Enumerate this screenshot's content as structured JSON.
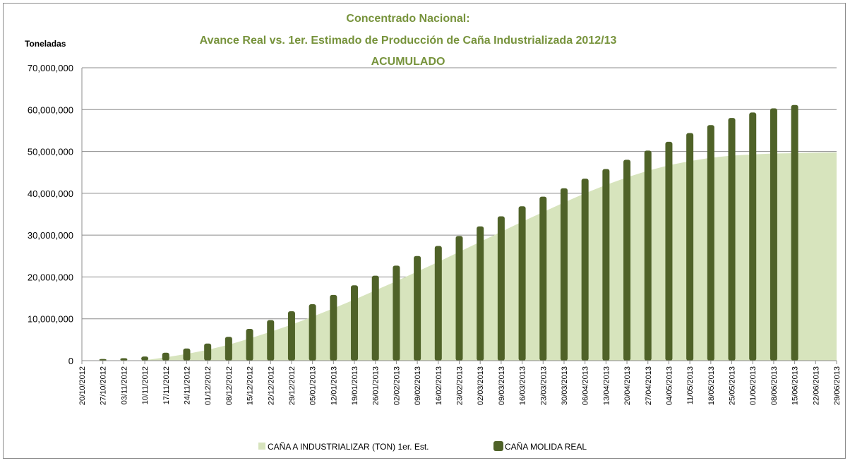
{
  "chart_data": {
    "type": "bar",
    "title_lines": [
      "Concentrado Nacional:",
      "Avance Real vs. 1er. Estimado de Producción de Caña Industrializada 2012/13",
      "ACUMULADO"
    ],
    "ylabel": "Toneladas",
    "ylim": [
      0,
      70000000
    ],
    "y_ticks": [
      "0",
      "10,000,000",
      "20,000,000",
      "30,000,000",
      "40,000,000",
      "50,000,000",
      "60,000,000",
      "70,000,000"
    ],
    "x_ticks": [
      "20/10/2012",
      "27/10/2012",
      "03/11/2012",
      "10/11/2012",
      "17/11/2012",
      "24/11/2012",
      "01/12/2012",
      "08/12/2012",
      "15/12/2012",
      "22/12/2012",
      "29/12/2012",
      "05/01/2013",
      "12/01/2013",
      "19/01/2013",
      "26/01/2013",
      "02/02/2013",
      "09/02/2013",
      "16/02/2013",
      "23/02/2013",
      "02/03/2013",
      "09/03/2013",
      "16/03/2013",
      "23/03/2013",
      "30/03/2013",
      "06/04/2013",
      "13/04/2013",
      "20/04/2013",
      "27/04/2013",
      "04/05/2013",
      "11/05/2013",
      "18/05/2013",
      "25/05/2013",
      "01/06/2013",
      "08/06/2013",
      "15/06/2013",
      "22/06/2013",
      "29/06/2013"
    ],
    "grid": true,
    "legend_position": "bottom",
    "series": [
      {
        "name": "CAÑA A INDUSTRIALIZAR (TON) 1er. Est.",
        "kind": "area",
        "color": "#d7e4bd",
        "x": [
          "20/10/2012",
          "27/10/2012",
          "03/11/2012",
          "10/11/2012",
          "17/11/2012",
          "24/11/2012",
          "01/12/2012",
          "08/12/2012",
          "15/12/2012",
          "22/12/2012",
          "29/12/2012",
          "05/01/2013",
          "12/01/2013",
          "19/01/2013",
          "26/01/2013",
          "02/02/2013",
          "09/02/2013",
          "16/02/2013",
          "23/02/2013",
          "02/03/2013",
          "09/03/2013",
          "16/03/2013",
          "23/03/2013",
          "30/03/2013",
          "06/04/2013",
          "13/04/2013",
          "20/04/2013",
          "27/04/2013",
          "04/05/2013",
          "11/05/2013",
          "18/05/2013",
          "25/05/2013",
          "01/06/2013",
          "08/06/2013",
          "15/06/2013",
          "22/06/2013",
          "29/06/2013"
        ],
        "values": [
          0,
          0,
          0,
          100000,
          800000,
          1600000,
          2600000,
          3800000,
          5300000,
          6900000,
          8600000,
          10500000,
          12500000,
          14600000,
          16800000,
          19000000,
          21300000,
          23600000,
          26000000,
          28400000,
          30800000,
          33200000,
          35500000,
          37800000,
          40000000,
          42000000,
          43800000,
          45400000,
          46700000,
          47700000,
          48500000,
          49000000,
          49300000,
          49500000,
          49600000,
          49700000,
          49750000
        ]
      },
      {
        "name": "CAÑA MOLIDA REAL",
        "kind": "bar",
        "color": "#4f6228",
        "x": [
          "27/10/2012",
          "03/11/2012",
          "10/11/2012",
          "17/11/2012",
          "24/11/2012",
          "01/12/2012",
          "08/12/2012",
          "15/12/2012",
          "22/12/2012",
          "29/12/2012",
          "05/01/2013",
          "12/01/2013",
          "19/01/2013",
          "26/01/2013",
          "02/02/2013",
          "09/02/2013",
          "16/02/2013",
          "23/02/2013",
          "02/03/2013",
          "09/03/2013",
          "16/03/2013",
          "23/03/2013",
          "30/03/2013",
          "06/04/2013",
          "13/04/2013",
          "20/04/2013",
          "27/04/2013",
          "04/05/2013",
          "11/05/2013",
          "18/05/2013",
          "25/05/2013",
          "01/06/2013",
          "08/06/2013",
          "15/06/2013"
        ],
        "values": [
          400000,
          600000,
          1000000,
          1900000,
          2900000,
          4100000,
          5700000,
          7600000,
          9700000,
          11800000,
          13500000,
          15700000,
          18000000,
          20300000,
          22700000,
          25000000,
          27400000,
          29800000,
          32100000,
          34500000,
          36900000,
          39200000,
          41200000,
          43500000,
          45800000,
          48000000,
          50200000,
          52300000,
          54400000,
          56300000,
          58000000,
          59300000,
          60300000,
          61100000
        ]
      }
    ]
  }
}
